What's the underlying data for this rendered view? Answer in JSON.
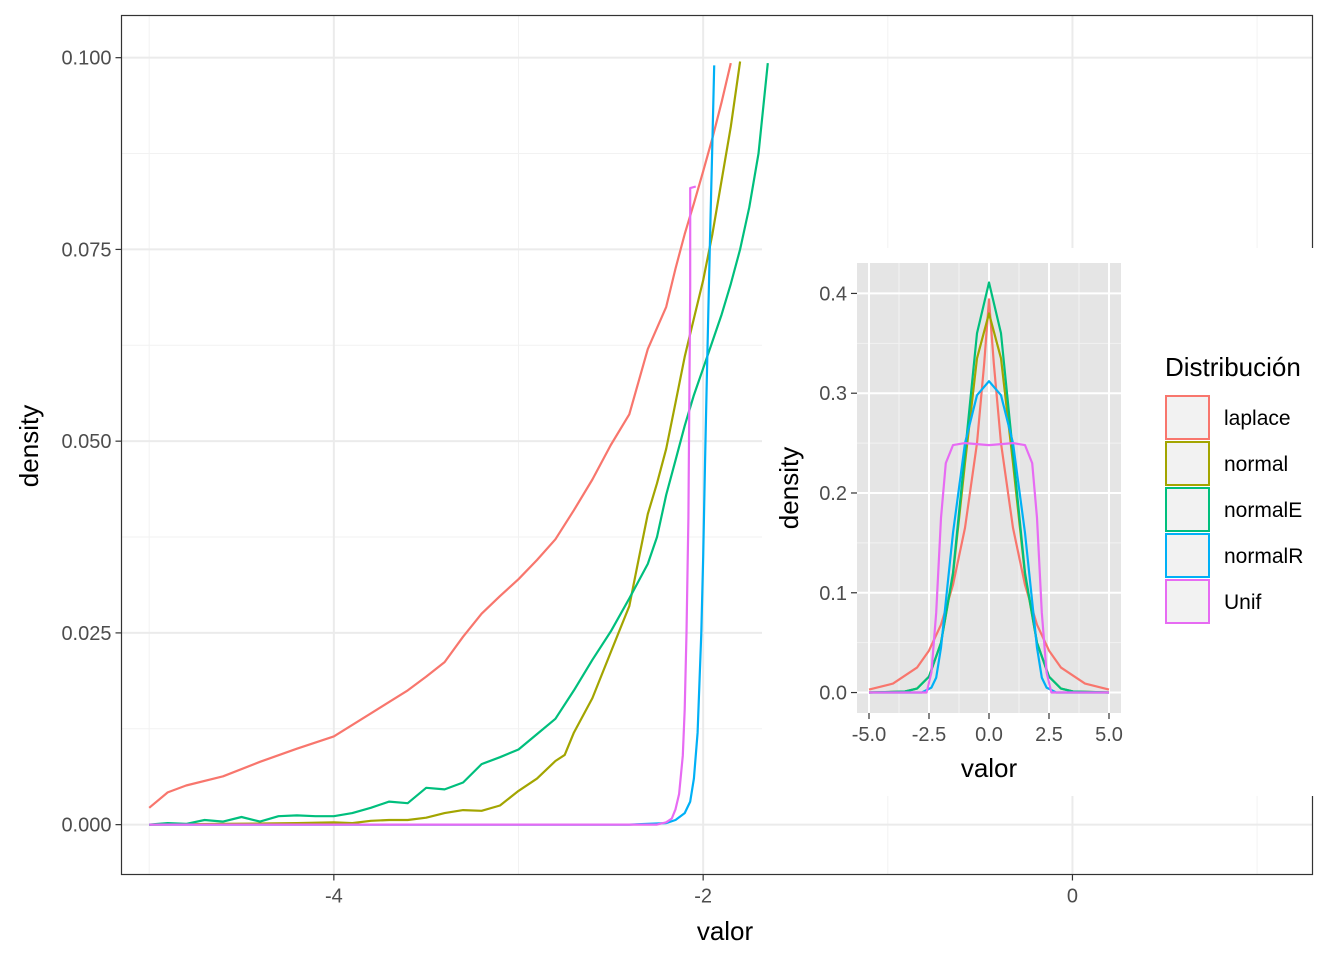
{
  "colors": {
    "laplace": "#F8766D",
    "normal": "#A3A500",
    "normalE": "#00BF7D",
    "normalR": "#00B0F6",
    "Unif": "#E76BF3",
    "grid_major": "#EBEBEB",
    "inset_panel": "#E5E5E5"
  },
  "chart_data": [
    {
      "type": "line",
      "subtype": "density",
      "panel": "main",
      "title": "",
      "xlabel": "valor",
      "ylabel": "density",
      "xlim": [
        -5.15,
        1.3
      ],
      "ylim": [
        -0.0065,
        0.1055
      ],
      "xticks": [
        -4,
        -2,
        0
      ],
      "xtick_labels": [
        "-4",
        "-2",
        "0"
      ],
      "yticks": [
        0,
        0.025,
        0.05,
        0.075,
        0.1
      ],
      "ytick_labels": [
        "0.000",
        "0.025",
        "0.050",
        "0.075",
        "0.100"
      ],
      "grid": true,
      "theme": "bw",
      "series": [
        {
          "name": "laplace",
          "x": [
            -5.0,
            -4.9,
            -4.8,
            -4.6,
            -4.4,
            -4.2,
            -4.0,
            -3.9,
            -3.8,
            -3.7,
            -3.6,
            -3.5,
            -3.4,
            -3.3,
            -3.2,
            -3.1,
            -3.0,
            -2.9,
            -2.8,
            -2.7,
            -2.6,
            -2.5,
            -2.4,
            -2.3,
            -2.2,
            -2.15,
            -2.1,
            -2.05,
            -2.0,
            -1.95,
            -1.9,
            -1.85
          ],
          "y": [
            0.0022,
            0.0042,
            0.0051,
            0.0063,
            0.0082,
            0.0099,
            0.0115,
            0.013,
            0.0145,
            0.016,
            0.0175,
            0.0193,
            0.0212,
            0.0245,
            0.0275,
            0.0298,
            0.032,
            0.0345,
            0.0372,
            0.041,
            0.045,
            0.0495,
            0.0535,
            0.062,
            0.0675,
            0.0725,
            0.077,
            0.081,
            0.0852,
            0.0895,
            0.0942,
            0.0993
          ]
        },
        {
          "name": "normal",
          "x": [
            -5.0,
            -4.6,
            -4.2,
            -4.0,
            -3.9,
            -3.8,
            -3.7,
            -3.6,
            -3.5,
            -3.4,
            -3.3,
            -3.2,
            -3.1,
            -3.0,
            -2.9,
            -2.8,
            -2.75,
            -2.7,
            -2.6,
            -2.5,
            -2.4,
            -2.35,
            -2.3,
            -2.25,
            -2.2,
            -2.15,
            -2.1,
            -2.05,
            -2.0,
            -1.95,
            -1.9,
            -1.85,
            -1.8
          ],
          "y": [
            0.0,
            0.0001,
            0.0002,
            0.0003,
            0.0002,
            0.0005,
            0.0006,
            0.0006,
            0.0009,
            0.0015,
            0.0019,
            0.0018,
            0.0025,
            0.0044,
            0.006,
            0.0083,
            0.0091,
            0.012,
            0.0165,
            0.0225,
            0.0285,
            0.0345,
            0.0405,
            0.0445,
            0.049,
            0.055,
            0.061,
            0.066,
            0.071,
            0.077,
            0.084,
            0.091,
            0.0995
          ]
        },
        {
          "name": "normalE",
          "x": [
            -5.0,
            -4.9,
            -4.8,
            -4.7,
            -4.6,
            -4.5,
            -4.4,
            -4.3,
            -4.2,
            -4.1,
            -4.0,
            -3.9,
            -3.8,
            -3.7,
            -3.6,
            -3.5,
            -3.4,
            -3.3,
            -3.2,
            -3.1,
            -3.0,
            -2.9,
            -2.8,
            -2.7,
            -2.6,
            -2.5,
            -2.4,
            -2.3,
            -2.25,
            -2.2,
            -2.15,
            -2.1,
            -2.05,
            -2.0,
            -1.95,
            -1.9,
            -1.85,
            -1.8,
            -1.75,
            -1.7,
            -1.65
          ],
          "y": [
            0.0,
            0.0002,
            0.0001,
            0.0006,
            0.0004,
            0.001,
            0.0004,
            0.0011,
            0.0012,
            0.0011,
            0.0011,
            0.0015,
            0.0022,
            0.003,
            0.0028,
            0.0048,
            0.0046,
            0.0055,
            0.0079,
            0.0088,
            0.0098,
            0.0118,
            0.0138,
            0.0175,
            0.0215,
            0.0252,
            0.0295,
            0.034,
            0.0375,
            0.043,
            0.0475,
            0.052,
            0.056,
            0.0595,
            0.063,
            0.0665,
            0.0705,
            0.075,
            0.0805,
            0.0875,
            0.0993
          ]
        },
        {
          "name": "normalR",
          "x": [
            -5.0,
            -2.4,
            -2.2,
            -2.15,
            -2.1,
            -2.07,
            -2.05,
            -2.03,
            -2.01,
            -2.0,
            -1.99,
            -1.98,
            -1.97,
            -1.96,
            -1.95,
            -1.94
          ],
          "y": [
            0.0,
            0.0,
            0.0002,
            0.0006,
            0.0015,
            0.003,
            0.006,
            0.012,
            0.025,
            0.035,
            0.047,
            0.058,
            0.069,
            0.079,
            0.089,
            0.099
          ]
        },
        {
          "name": "Unif",
          "x": [
            -5.0,
            -2.25,
            -2.2,
            -2.17,
            -2.15,
            -2.13,
            -2.11,
            -2.1,
            -2.09,
            -2.08,
            -2.075,
            -2.07,
            -2.07,
            -2.04
          ],
          "y": [
            0.0,
            0.0,
            0.0003,
            0.0008,
            0.002,
            0.004,
            0.009,
            0.015,
            0.025,
            0.04,
            0.055,
            0.07,
            0.083,
            0.0832
          ]
        }
      ]
    },
    {
      "type": "line",
      "subtype": "density",
      "panel": "inset",
      "title": "",
      "xlabel": "valor",
      "ylabel": "density",
      "xlim": [
        -5.5,
        5.5
      ],
      "ylim": [
        -0.0205,
        0.4305
      ],
      "xticks": [
        -5,
        -2.5,
        0,
        2.5,
        5
      ],
      "xtick_labels": [
        "-5.0",
        "-2.5",
        "0.0",
        "2.5",
        "5.0"
      ],
      "yticks": [
        0,
        0.1,
        0.2,
        0.3,
        0.4
      ],
      "ytick_labels": [
        "0.0",
        "0.1",
        "0.2",
        "0.3",
        "0.4"
      ],
      "grid": true,
      "theme": "grey",
      "series": [
        {
          "name": "laplace",
          "x": [
            -5,
            -4,
            -3,
            -2.5,
            -2,
            -1.5,
            -1,
            -0.5,
            -0.2,
            0,
            0.2,
            0.5,
            1,
            1.5,
            2,
            2.5,
            3,
            4,
            5
          ],
          "y": [
            0.003,
            0.009,
            0.025,
            0.042,
            0.068,
            0.108,
            0.165,
            0.25,
            0.33,
            0.394,
            0.33,
            0.25,
            0.165,
            0.108,
            0.068,
            0.042,
            0.025,
            0.009,
            0.003
          ]
        },
        {
          "name": "normal",
          "x": [
            -5,
            -3.5,
            -3,
            -2.5,
            -2,
            -1.5,
            -1,
            -0.5,
            0,
            0.5,
            1,
            1.5,
            2,
            2.5,
            3,
            3.5,
            5
          ],
          "y": [
            0.0,
            0.001,
            0.004,
            0.016,
            0.05,
            0.118,
            0.23,
            0.335,
            0.38,
            0.335,
            0.23,
            0.118,
            0.05,
            0.016,
            0.004,
            0.001,
            0.0
          ]
        },
        {
          "name": "normalE",
          "x": [
            -5,
            -3.5,
            -3,
            -2.5,
            -2,
            -1.5,
            -1,
            -0.5,
            0,
            0.5,
            1,
            1.5,
            2,
            2.5,
            3,
            3.5,
            5
          ],
          "y": [
            0.0,
            0.001,
            0.004,
            0.016,
            0.05,
            0.12,
            0.24,
            0.36,
            0.411,
            0.36,
            0.24,
            0.12,
            0.05,
            0.016,
            0.004,
            0.001,
            0.0
          ]
        },
        {
          "name": "normalR",
          "x": [
            -5,
            -2.8,
            -2.4,
            -2.2,
            -2,
            -1.5,
            -1,
            -0.5,
            0,
            0.5,
            1,
            1.5,
            2,
            2.2,
            2.4,
            2.8,
            5
          ],
          "y": [
            0.0,
            0.0,
            0.005,
            0.015,
            0.045,
            0.16,
            0.25,
            0.298,
            0.312,
            0.298,
            0.25,
            0.16,
            0.045,
            0.015,
            0.005,
            0.0,
            0.0
          ]
        },
        {
          "name": "Unif",
          "x": [
            -5,
            -2.6,
            -2.4,
            -2.2,
            -2,
            -1.8,
            -1.5,
            -1,
            -0.5,
            0,
            0.5,
            1,
            1.5,
            1.8,
            2,
            2.2,
            2.4,
            2.6,
            5
          ],
          "y": [
            0.0,
            0.0,
            0.02,
            0.08,
            0.175,
            0.23,
            0.248,
            0.25,
            0.249,
            0.248,
            0.249,
            0.25,
            0.248,
            0.23,
            0.175,
            0.08,
            0.02,
            0.0,
            0.0
          ]
        }
      ]
    }
  ],
  "legend": {
    "title": "Distribución",
    "placement": "right of inset",
    "items": [
      {
        "label": "laplace",
        "color_key": "laplace"
      },
      {
        "label": "normal",
        "color_key": "normal"
      },
      {
        "label": "normalE",
        "color_key": "normalE"
      },
      {
        "label": "normalR",
        "color_key": "normalR"
      },
      {
        "label": "Unif",
        "color_key": "Unif"
      }
    ]
  }
}
